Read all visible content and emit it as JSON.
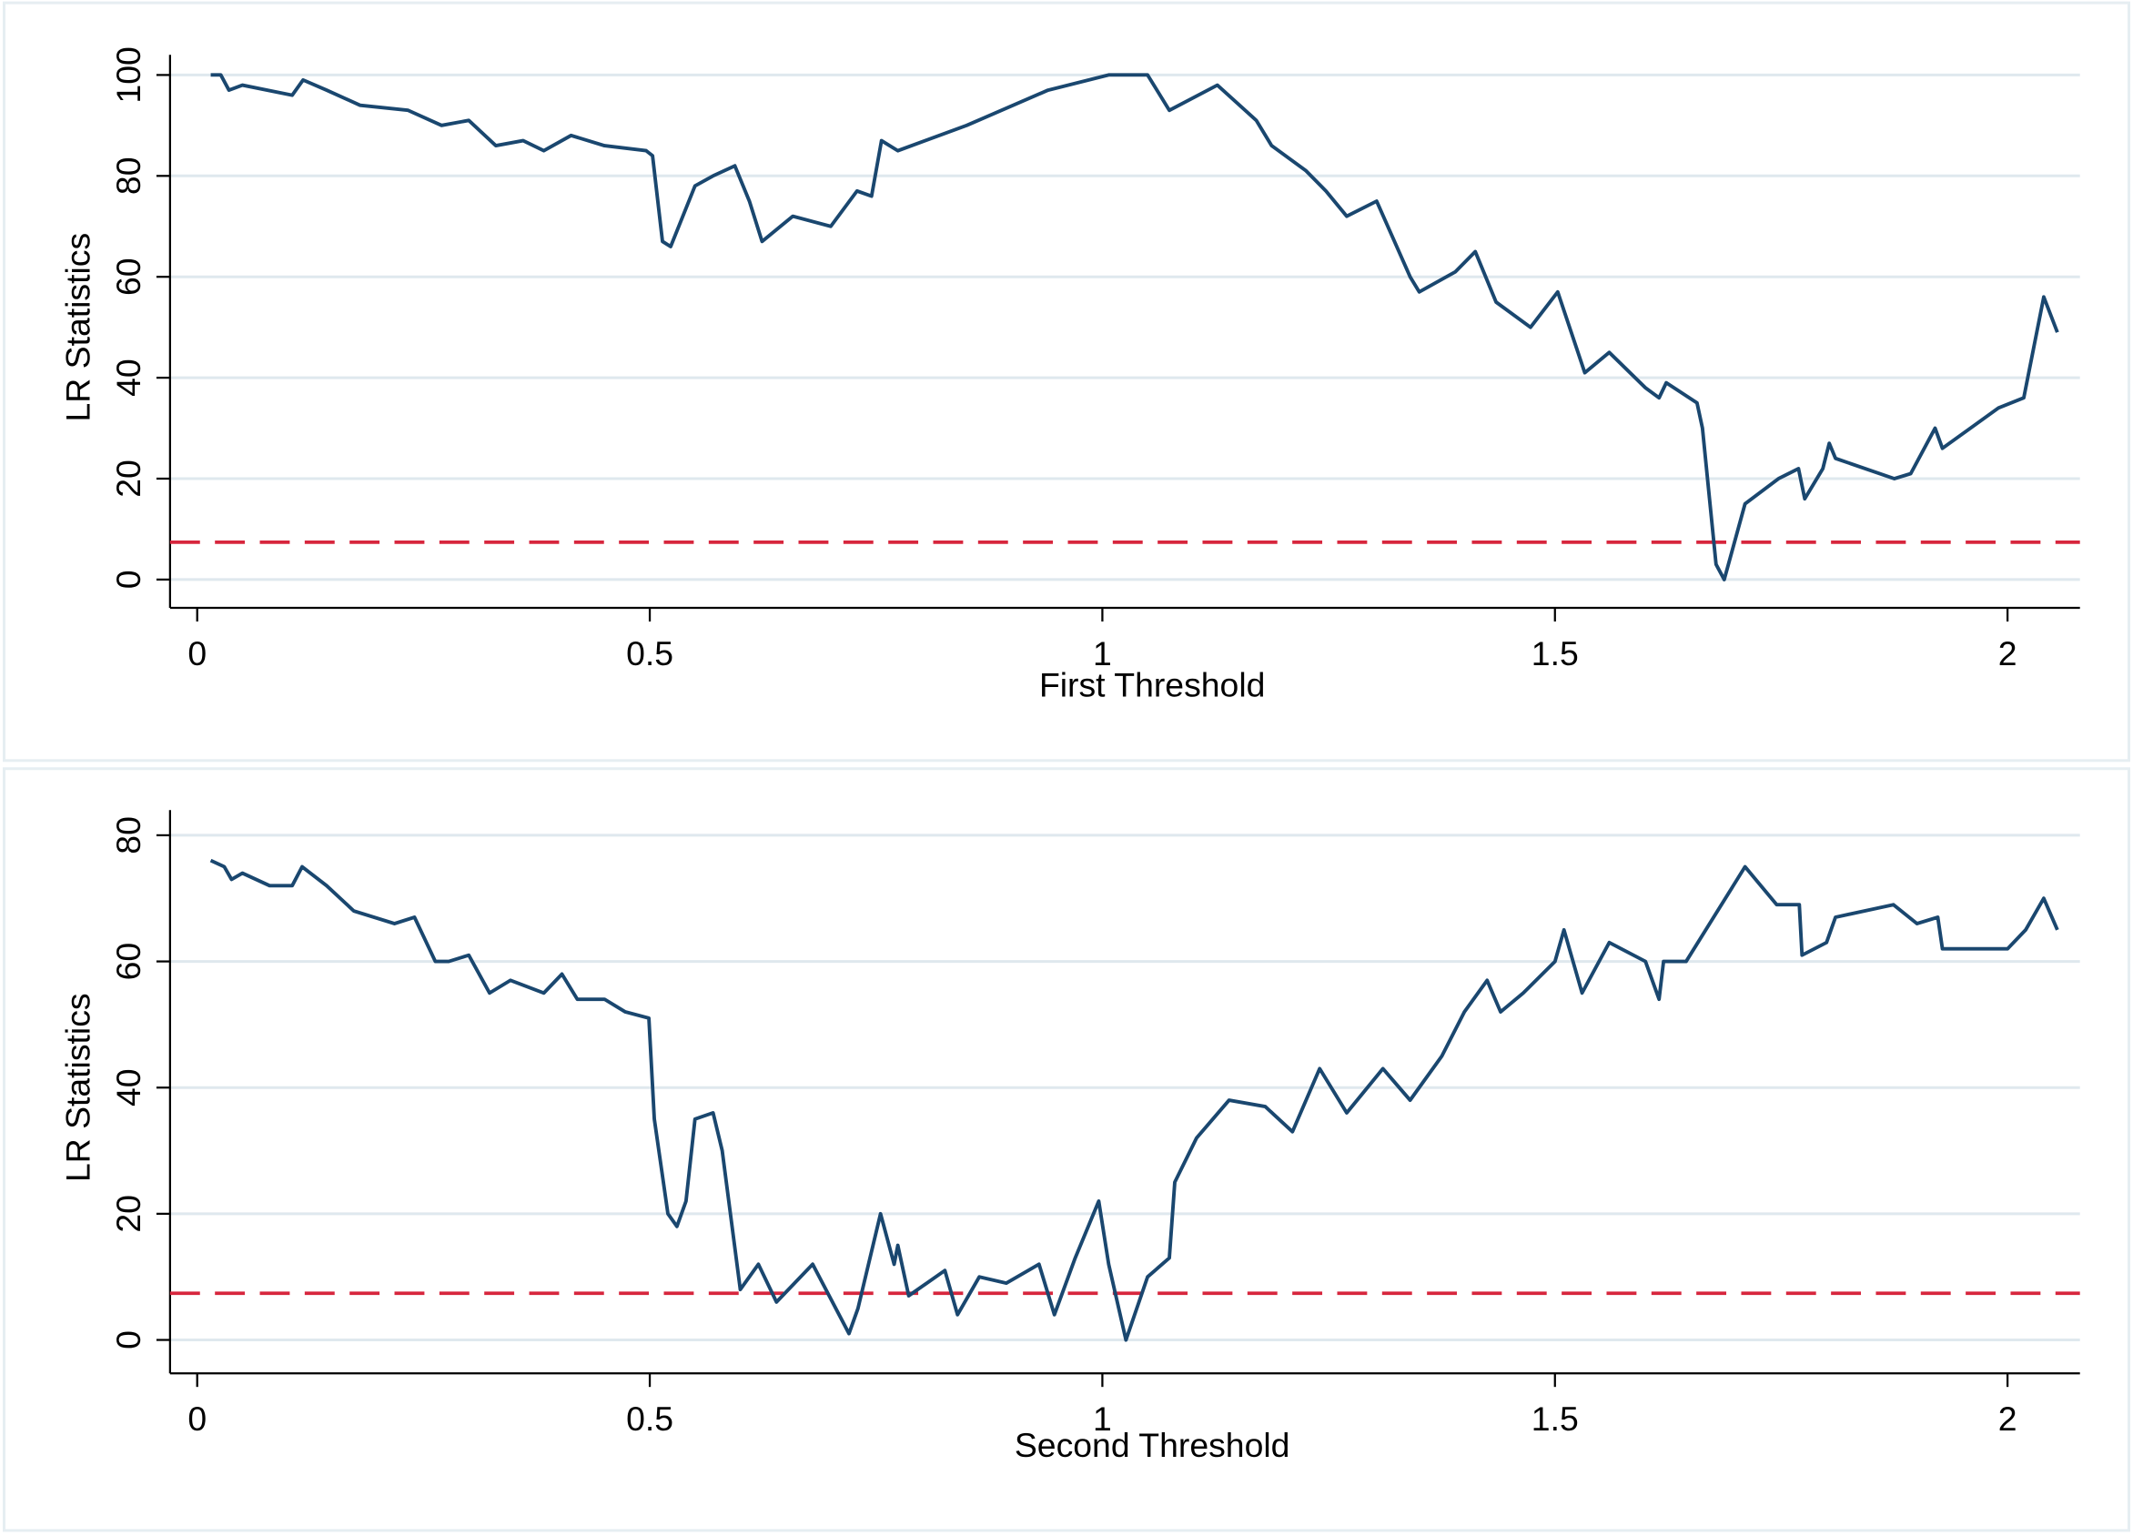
{
  "chart_data": [
    {
      "type": "line",
      "xlabel": "First Threshold",
      "ylabel": "LR Statistics",
      "xlim": [
        -0.03,
        2.08
      ],
      "ylim": [
        -4,
        104
      ],
      "xticks": [
        0,
        0.5,
        1,
        1.5,
        2
      ],
      "yticks": [
        0,
        20,
        40,
        60,
        80,
        100
      ],
      "grid": true,
      "x": [
        0.015,
        0.026,
        0.035,
        0.05,
        0.105,
        0.117,
        0.143,
        0.18,
        0.233,
        0.27,
        0.3,
        0.33,
        0.36,
        0.383,
        0.413,
        0.45,
        0.496,
        0.503,
        0.514,
        0.523,
        0.55,
        0.57,
        0.594,
        0.61,
        0.624,
        0.658,
        0.7,
        0.729,
        0.745,
        0.756,
        0.774,
        0.85,
        0.94,
        1.007,
        1.05,
        1.074,
        1.127,
        1.17,
        1.187,
        1.225,
        1.247,
        1.27,
        1.303,
        1.34,
        1.35,
        1.39,
        1.412,
        1.435,
        1.473,
        1.503,
        1.533,
        1.56,
        1.6,
        1.615,
        1.623,
        1.657,
        1.663,
        1.678,
        1.687,
        1.71,
        1.747,
        1.769,
        1.776,
        1.796,
        1.803,
        1.81,
        1.875,
        1.893,
        1.92,
        1.928,
        1.99,
        2.018,
        2.04,
        2.055
      ],
      "series": [
        {
          "color": "#1a476f",
          "values": [
            100,
            100,
            97,
            98,
            96,
            99,
            97,
            94,
            93,
            90,
            91,
            86,
            87,
            85,
            88,
            86,
            85,
            84,
            67,
            66,
            78,
            80,
            82,
            75,
            67,
            72,
            70,
            77,
            76,
            87,
            85,
            90,
            97,
            100,
            100,
            93,
            98,
            91,
            86,
            81,
            77,
            72,
            75,
            60,
            57,
            61,
            65,
            55,
            50,
            57,
            41,
            45,
            38,
            36,
            39,
            35,
            30,
            3,
            0,
            15,
            20,
            22,
            16,
            22,
            27,
            24,
            20,
            21,
            30,
            26,
            34,
            36,
            56,
            49
          ]
        }
      ],
      "reference_line": {
        "value": 7.4,
        "color": "#d7263d",
        "style": "dashed"
      }
    },
    {
      "type": "line",
      "xlabel": "Second Threshold",
      "ylabel": "LR Statistics",
      "xlim": [
        -0.03,
        2.08
      ],
      "ylim": [
        -4,
        84
      ],
      "xticks": [
        0,
        0.5,
        1,
        1.5,
        2
      ],
      "yticks": [
        0,
        20,
        40,
        60,
        80
      ],
      "grid": true,
      "x": [
        0.015,
        0.03,
        0.038,
        0.05,
        0.08,
        0.105,
        0.116,
        0.143,
        0.173,
        0.218,
        0.24,
        0.263,
        0.278,
        0.3,
        0.323,
        0.346,
        0.383,
        0.403,
        0.42,
        0.45,
        0.473,
        0.499,
        0.505,
        0.52,
        0.53,
        0.54,
        0.55,
        0.57,
        0.58,
        0.6,
        0.62,
        0.64,
        0.68,
        0.72,
        0.73,
        0.755,
        0.77,
        0.774,
        0.786,
        0.826,
        0.84,
        0.864,
        0.894,
        0.93,
        0.947,
        0.97,
        0.996,
        1.007,
        1.026,
        1.05,
        1.074,
        1.08,
        1.104,
        1.14,
        1.18,
        1.21,
        1.24,
        1.27,
        1.31,
        1.34,
        1.375,
        1.4,
        1.425,
        1.44,
        1.465,
        1.5,
        1.51,
        1.53,
        1.56,
        1.6,
        1.615,
        1.62,
        1.645,
        1.71,
        1.745,
        1.77,
        1.773,
        1.8,
        1.81,
        1.874,
        1.9,
        1.923,
        1.928,
        2.0,
        2.02,
        2.04,
        2.055
      ],
      "series": [
        {
          "color": "#1a476f",
          "values": [
            76,
            75,
            73,
            74,
            72,
            72,
            75,
            72,
            68,
            66,
            67,
            60,
            60,
            61,
            55,
            57,
            55,
            58,
            54,
            54,
            52,
            51,
            35,
            20,
            18,
            22,
            35,
            36,
            30,
            8,
            12,
            6,
            12,
            1,
            5,
            20,
            12,
            15,
            7,
            11,
            4,
            10,
            9,
            12,
            4,
            13,
            22,
            12,
            0,
            10,
            13,
            25,
            32,
            38,
            37,
            33,
            43,
            36,
            43,
            38,
            45,
            52,
            57,
            52,
            55,
            60,
            65,
            55,
            63,
            60,
            54,
            60,
            60,
            75,
            69,
            69,
            61,
            63,
            67,
            69,
            66,
            67,
            62,
            62,
            65,
            70,
            65
          ]
        }
      ],
      "reference_line": {
        "value": 7.4,
        "color": "#d7263d",
        "style": "dashed"
      }
    }
  ]
}
